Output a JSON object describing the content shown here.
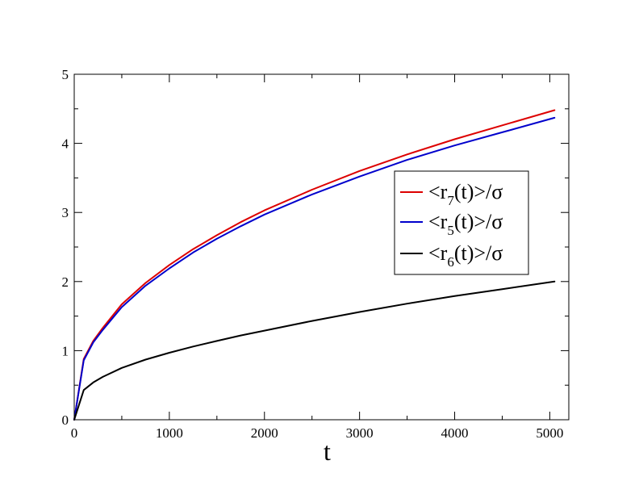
{
  "chart_data": {
    "type": "line",
    "title": "",
    "xlabel": "t",
    "ylabel": "",
    "xlim": [
      0,
      5200
    ],
    "ylim": [
      0,
      5
    ],
    "xticks": [
      0,
      1000,
      2000,
      3000,
      4000,
      5000
    ],
    "xtick_labels": [
      "0",
      "1000",
      "2000",
      "3000",
      "4000",
      "5000"
    ],
    "yticks": [
      0,
      1,
      2,
      3,
      4,
      5
    ],
    "ytick_labels": [
      "0",
      "1",
      "2",
      "3",
      "4",
      "5"
    ],
    "x_minor_step": 500,
    "y_minor_step": 0.5,
    "grid": false,
    "legend_position": "right",
    "series": [
      {
        "name": "<r7(t)>/σ",
        "legend_prefix": "<r",
        "legend_subscript": "7",
        "legend_suffix": "(t)>/σ",
        "color": "#dd0000",
        "x": [
          0,
          100,
          200,
          300,
          500,
          750,
          1000,
          1250,
          1500,
          1750,
          2000,
          2500,
          3000,
          3500,
          4000,
          4500,
          5050
        ],
        "y": [
          0,
          0.88,
          1.14,
          1.33,
          1.67,
          1.98,
          2.24,
          2.47,
          2.67,
          2.86,
          3.03,
          3.33,
          3.6,
          3.84,
          4.06,
          4.26,
          4.48
        ]
      },
      {
        "name": "<r5(t)>/σ",
        "legend_prefix": "<r",
        "legend_subscript": "5",
        "legend_suffix": "(t)>/σ",
        "color": "#0000cc",
        "x": [
          0,
          100,
          200,
          300,
          500,
          750,
          1000,
          1250,
          1500,
          1750,
          2000,
          2500,
          3000,
          3500,
          4000,
          4500,
          5050
        ],
        "y": [
          0,
          0.86,
          1.12,
          1.3,
          1.63,
          1.94,
          2.19,
          2.42,
          2.62,
          2.8,
          2.97,
          3.26,
          3.52,
          3.76,
          3.97,
          4.16,
          4.37
        ]
      },
      {
        "name": "<r6(t)>/σ",
        "legend_prefix": "<r",
        "legend_subscript": "6",
        "legend_suffix": "(t)>/σ",
        "color": "#000000",
        "x": [
          0,
          100,
          200,
          300,
          500,
          750,
          1000,
          1250,
          1500,
          1750,
          2000,
          2500,
          3000,
          3500,
          4000,
          4500,
          5050
        ],
        "y": [
          0,
          0.43,
          0.54,
          0.62,
          0.75,
          0.87,
          0.97,
          1.06,
          1.14,
          1.22,
          1.29,
          1.43,
          1.56,
          1.68,
          1.79,
          1.89,
          2.0
        ]
      }
    ]
  }
}
